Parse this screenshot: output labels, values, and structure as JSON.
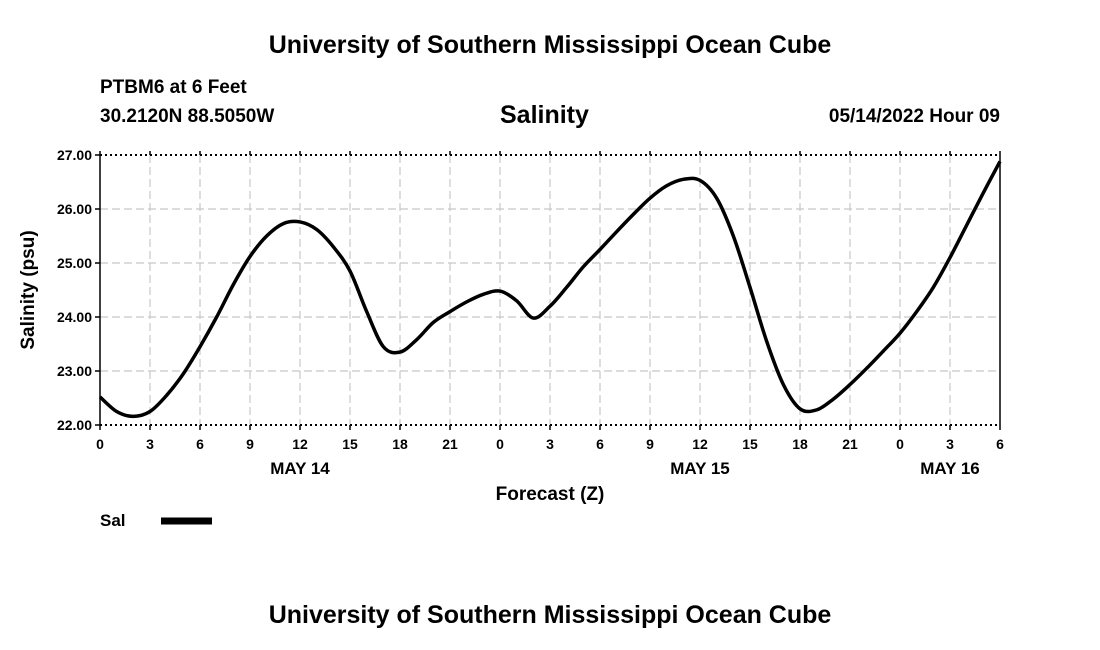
{
  "header": {
    "title": "University of Southern Mississippi Ocean Cube",
    "station": "PTBM6 at 6 Feet",
    "coordinates": "30.2120N  88.5050W",
    "timestamp": "05/14/2022 Hour 09"
  },
  "footer": {
    "title": "University of Southern Mississippi Ocean Cube"
  },
  "chart_data": {
    "type": "line",
    "title": "Salinity",
    "xlabel": "Forecast (Z)",
    "ylabel": "Salinity (psu)",
    "ylim": [
      22.0,
      27.0
    ],
    "y_ticks": [
      "22.00",
      "23.00",
      "24.00",
      "25.00",
      "26.00",
      "27.00"
    ],
    "x_hour_ticks": [
      "0",
      "3",
      "6",
      "9",
      "12",
      "15",
      "18",
      "21",
      "0",
      "3",
      "6",
      "9",
      "12",
      "15",
      "18",
      "21",
      "0",
      "3",
      "6"
    ],
    "date_labels": [
      {
        "label": "MAY 14",
        "at_hour": 12
      },
      {
        "label": "MAY 15",
        "at_hour": 36
      },
      {
        "label": "MAY 16",
        "at_hour": 51
      }
    ],
    "grid": true,
    "legend": "bottom-left",
    "line_color": "#000000",
    "series": [
      {
        "name": "Sal",
        "x": [
          0,
          1,
          2,
          3,
          4,
          5,
          6,
          7,
          8,
          9,
          10,
          11,
          12,
          13,
          14,
          15,
          16,
          17,
          18,
          19,
          20,
          21,
          22,
          23,
          24,
          25,
          26,
          27,
          28,
          29,
          30,
          31,
          32,
          33,
          34,
          35,
          36,
          37,
          38,
          39,
          40,
          41,
          42,
          43,
          44,
          45,
          46,
          47,
          48,
          49,
          50,
          51,
          52,
          53,
          54
        ],
        "values": [
          22.52,
          22.25,
          22.16,
          22.25,
          22.55,
          22.95,
          23.45,
          24.0,
          24.6,
          25.12,
          25.5,
          25.73,
          25.76,
          25.62,
          25.3,
          24.85,
          24.1,
          23.45,
          23.35,
          23.58,
          23.9,
          24.1,
          24.28,
          24.42,
          24.48,
          24.3,
          23.98,
          24.2,
          24.55,
          24.93,
          25.25,
          25.58,
          25.9,
          26.2,
          26.43,
          26.55,
          26.53,
          26.2,
          25.5,
          24.55,
          23.55,
          22.75,
          22.3,
          22.28,
          22.48,
          22.75,
          23.05,
          23.37,
          23.7,
          24.1,
          24.55,
          25.1,
          25.7,
          26.3,
          26.88
        ]
      }
    ]
  }
}
